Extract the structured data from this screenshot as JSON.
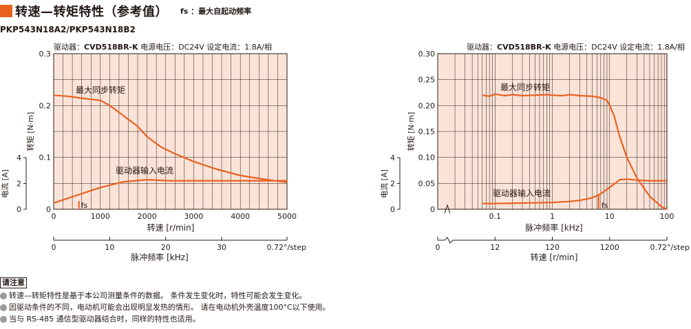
{
  "header": {
    "title": "转速—转矩特性（参考值）",
    "fs_note": "fs ：最大自起动频率"
  },
  "model": "PKP543N18A2/PKP543N18B2",
  "chart_data": [
    {
      "type": "line",
      "cond": {
        "driver_label": "驱动器：",
        "driver": "CVD518BR-K",
        "rest": "  电源电压：DC24V  设定电流：1.8A/相"
      },
      "xlabel": "转速 [r/min]",
      "xlim": [
        0,
        5000
      ],
      "xticks": [
        "0",
        "1000",
        "2000",
        "3000",
        "4000",
        "5000"
      ],
      "ylabel": "转矩 [N·m]",
      "ylim": [
        0,
        0.3
      ],
      "yticks": [
        "0",
        "0.1",
        "0.2",
        "0.3"
      ],
      "y2label": "电流 [A]",
      "y2ticks": [
        "0",
        "2",
        "4"
      ],
      "sublabel": "脉冲频率 [kHz]",
      "subticks": [
        "0",
        "10",
        "20",
        "30",
        "0.72°/step"
      ],
      "torque_name": "最大同步转矩",
      "current_name": "驱动器输入电流",
      "fs_label": "fs",
      "torque": {
        "x": [
          0,
          300,
          700,
          1000,
          1200,
          1500,
          1800,
          2000,
          2300,
          2600,
          3000,
          3500,
          4000,
          4500,
          5000
        ],
        "y": [
          0.22,
          0.218,
          0.213,
          0.21,
          0.2,
          0.18,
          0.16,
          0.14,
          0.12,
          0.107,
          0.092,
          0.077,
          0.065,
          0.058,
          0.052
        ]
      },
      "current": {
        "x": [
          0,
          500,
          1000,
          1500,
          2000,
          2500,
          3000,
          4000,
          5000
        ],
        "y": [
          0.012,
          0.027,
          0.042,
          0.053,
          0.057,
          0.055,
          0.055,
          0.055,
          0.055
        ]
      }
    },
    {
      "type": "line",
      "cond": {
        "driver_label": "驱动器：",
        "driver": "CVD518BR-K",
        "rest": "  电源电压：DC24V  设定电流：1.8A/相"
      },
      "xlabel": "脉冲频率 [kHz]",
      "xscale": "log",
      "xlim": [
        0.01,
        100
      ],
      "xticks": [
        "0.1",
        "1",
        "10",
        "100"
      ],
      "x_origin_tick": "0",
      "ylabel": "转矩 [N·m]",
      "ylim": [
        0,
        0.3
      ],
      "yticks": [
        "0",
        "0.05",
        "0.10",
        "0.15",
        "0.20",
        "0.25",
        "0.30"
      ],
      "y2label": "电流 [A]",
      "y2ticks": [
        "0",
        "2",
        "4"
      ],
      "sublabel": "转速 [r/min]",
      "subticks": [
        "0",
        "12",
        "120",
        "1200",
        "0.72°/step"
      ],
      "torque_name": "最大同步转矩",
      "current_name": "驱动器输入电流",
      "fs_label": "fs",
      "torque": {
        "x": [
          0.06,
          0.08,
          0.1,
          0.15,
          0.2,
          0.3,
          0.5,
          0.8,
          1,
          1.5,
          2,
          3,
          5,
          7,
          9,
          10,
          12,
          15,
          20,
          30,
          50,
          80,
          100
        ],
        "y": [
          0.22,
          0.218,
          0.222,
          0.219,
          0.221,
          0.219,
          0.22,
          0.221,
          0.22,
          0.219,
          0.221,
          0.219,
          0.218,
          0.215,
          0.21,
          0.2,
          0.18,
          0.14,
          0.1,
          0.06,
          0.025,
          0.005,
          0
        ]
      },
      "current": {
        "x": [
          0.06,
          0.1,
          0.3,
          1,
          2,
          3,
          5,
          7,
          10,
          15,
          20,
          30,
          50,
          100
        ],
        "y": [
          0.011,
          0.011,
          0.012,
          0.013,
          0.015,
          0.017,
          0.022,
          0.03,
          0.042,
          0.057,
          0.058,
          0.056,
          0.055,
          0.055
        ]
      }
    }
  ],
  "notes": {
    "title": "请注意",
    "items": [
      "转速—转矩特性是基于本公司测量条件的数据。 条件发生变化时，特性可能会发生变化。",
      "因驱动条件的不同，电动机可能会出现明显发热的情形。 请在电动机外壳温度100°C以下使用。",
      "当与 RS-485 通信型驱动器结合时，同样的特性也适用。"
    ]
  }
}
